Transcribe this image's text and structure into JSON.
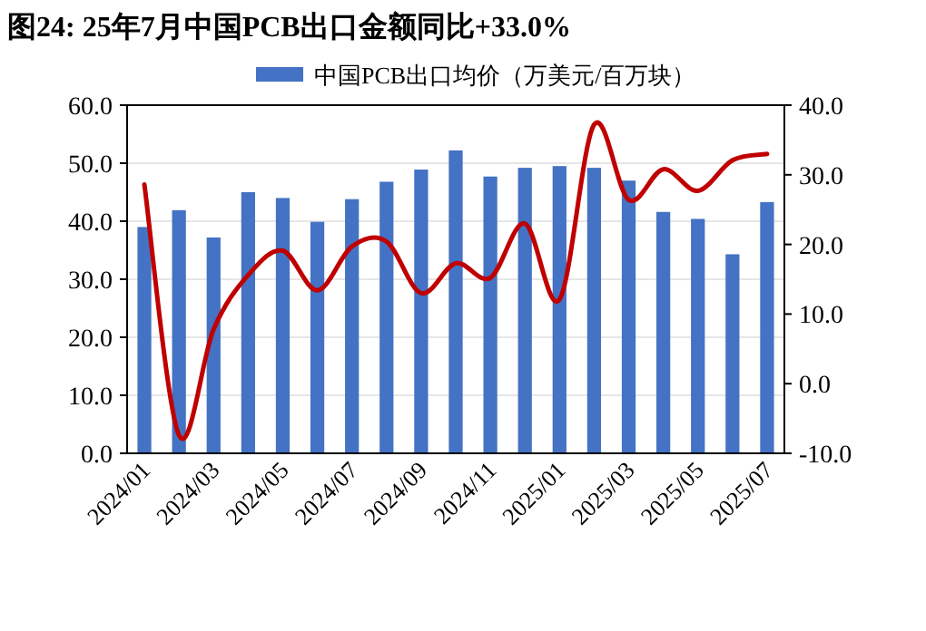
{
  "chart_data": {
    "type": "bar",
    "title": "图24:  25年7月中国PCB出口金额同比+33.0%",
    "categories": [
      "2024/01",
      null,
      "2024/03",
      null,
      "2024/05",
      null,
      "2024/07",
      null,
      "2024/09",
      null,
      "2024/11",
      null,
      "2025/01",
      null,
      "2025/03",
      null,
      "2025/05",
      null,
      "2025/07"
    ],
    "series": [
      {
        "name": "中国PCB出口均价（万美元/百万块）",
        "color": "#4472c4",
        "values": [
          39.0,
          41.9,
          37.2,
          45.0,
          44.0,
          39.9,
          43.8,
          46.8,
          48.9,
          52.2,
          47.7,
          49.2,
          49.5,
          49.2,
          47.0,
          41.6,
          40.4,
          34.3,
          43.3
        ]
      },
      {
        "type": "line",
        "axis": "y2",
        "color": "#c00000",
        "values": [
          28.6,
          -7.4,
          7.8,
          15.6,
          19.1,
          13.4,
          19.7,
          20.4,
          13.0,
          17.3,
          15.2,
          23.0,
          12.1,
          37.2,
          26.4,
          30.8,
          27.7,
          32.1,
          33.0
        ]
      }
    ],
    "ylim": [
      0,
      60
    ],
    "yticks": [
      {
        "value": 0,
        "label": "0.0"
      },
      {
        "value": 10,
        "label": "10.0"
      },
      {
        "value": 20,
        "label": "20.0"
      },
      {
        "value": 30,
        "label": "30.0"
      },
      {
        "value": 40,
        "label": "40.0"
      },
      {
        "value": 50,
        "label": "50.0"
      },
      {
        "value": 60,
        "label": "60.0"
      }
    ],
    "y2lim": [
      -10,
      40
    ],
    "y2ticks": [
      {
        "value": -10,
        "label": "-10.0"
      },
      {
        "value": 0,
        "label": "0.0"
      },
      {
        "value": 10,
        "label": "10.0"
      },
      {
        "value": 20,
        "label": "20.0"
      },
      {
        "value": 30,
        "label": "30.0"
      },
      {
        "value": 40,
        "label": "40.0"
      }
    ],
    "grid": "y",
    "legend": "top"
  }
}
